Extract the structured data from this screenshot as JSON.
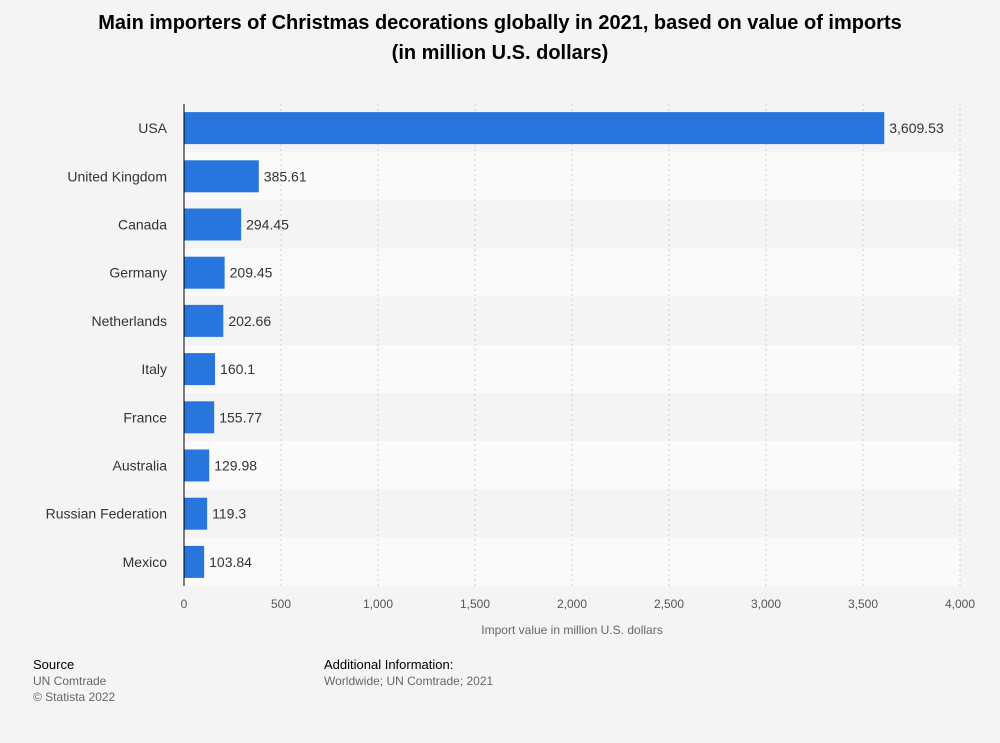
{
  "chart_data": {
    "type": "bar",
    "orientation": "horizontal",
    "title": "Main importers of Christmas decorations globally in 2021, based on value of imports (in million U.S. dollars)",
    "title_lines": [
      "Main importers of Christmas decorations globally in 2021, based on value of imports",
      "(in million U.S. dollars)"
    ],
    "categories": [
      "USA",
      "United Kingdom",
      "Canada",
      "Germany",
      "Netherlands",
      "Italy",
      "France",
      "Australia",
      "Russian Federation",
      "Mexico"
    ],
    "values": [
      3609.53,
      385.61,
      294.45,
      209.45,
      202.66,
      160.1,
      155.77,
      129.98,
      119.3,
      103.84
    ],
    "value_labels": [
      "3,609.53",
      "385.61",
      "294.45",
      "209.45",
      "202.66",
      "160.1",
      "155.77",
      "129.98",
      "119.3",
      "103.84"
    ],
    "xlabel": "Import value in million U.S. dollars",
    "xlim": [
      0,
      4000
    ],
    "xticks": [
      0,
      500,
      1000,
      1500,
      2000,
      2500,
      3000,
      3500,
      4000
    ],
    "xtick_labels": [
      "0",
      "500",
      "1,000",
      "1,500",
      "2,000",
      "2,500",
      "3,000",
      "3,500",
      "4,000"
    ],
    "grid": true,
    "bar_color": "#2876dd"
  },
  "footer": {
    "source_heading": "Source",
    "source_lines": [
      "UN Comtrade",
      "© Statista 2022"
    ],
    "info_heading": "Additional Information:",
    "info_text": "Worldwide; UN Comtrade; 2021"
  }
}
